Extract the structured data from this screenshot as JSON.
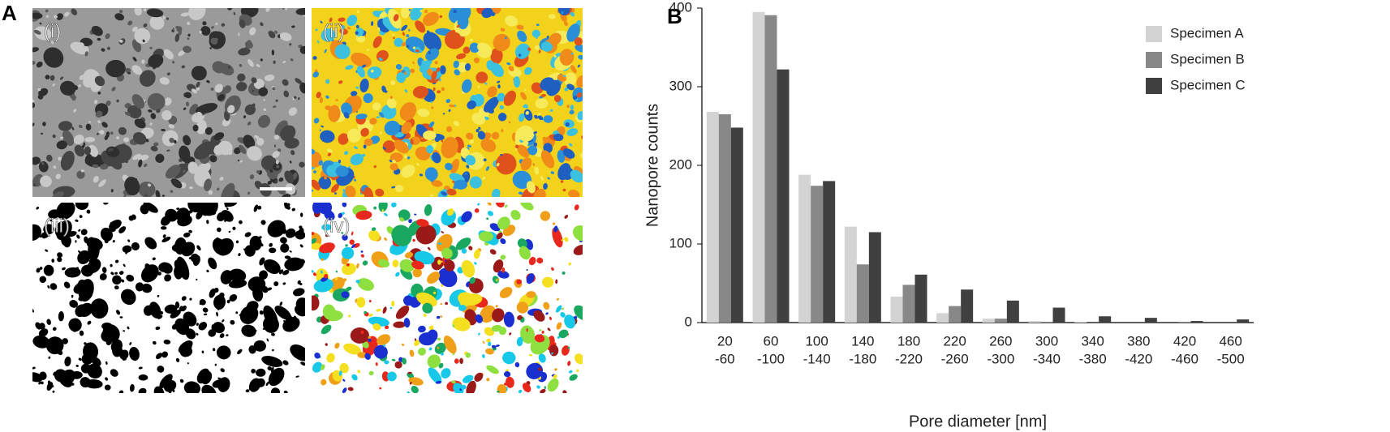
{
  "panel_labels": {
    "a": "A",
    "b": "B"
  },
  "image_labels": [
    "(i)",
    "(ii)",
    "(iii)",
    "(iv)"
  ],
  "chart_data": {
    "type": "bar",
    "x_label": "Pore diameter [nm]",
    "y_label": "Nanopore counts",
    "categories": [
      [
        "20",
        "-60"
      ],
      [
        "60",
        "-100"
      ],
      [
        "100",
        "-140"
      ],
      [
        "140",
        "-180"
      ],
      [
        "180",
        "-220"
      ],
      [
        "220",
        "-260"
      ],
      [
        "260",
        "-300"
      ],
      [
        "300",
        "-340"
      ],
      [
        "340",
        "-380"
      ],
      [
        "380",
        "-420"
      ],
      [
        "420",
        "-460"
      ],
      [
        "460",
        "-500"
      ]
    ],
    "series": [
      {
        "name": "Specimen A",
        "color": "#d3d3d3",
        "values": [
          268,
          395,
          188,
          122,
          33,
          12,
          5,
          2,
          1,
          0,
          0,
          0
        ]
      },
      {
        "name": "Specimen B",
        "color": "#888888",
        "values": [
          265,
          391,
          174,
          74,
          48,
          21,
          5,
          1,
          0,
          0,
          1,
          0
        ]
      },
      {
        "name": "Specimen C",
        "color": "#404040",
        "values": [
          248,
          322,
          180,
          115,
          61,
          42,
          28,
          19,
          8,
          6,
          2,
          4
        ]
      }
    ],
    "ylim": [
      0,
      400
    ],
    "yticks": [
      0,
      100,
      200,
      300,
      400
    ],
    "legend": "upper right"
  }
}
